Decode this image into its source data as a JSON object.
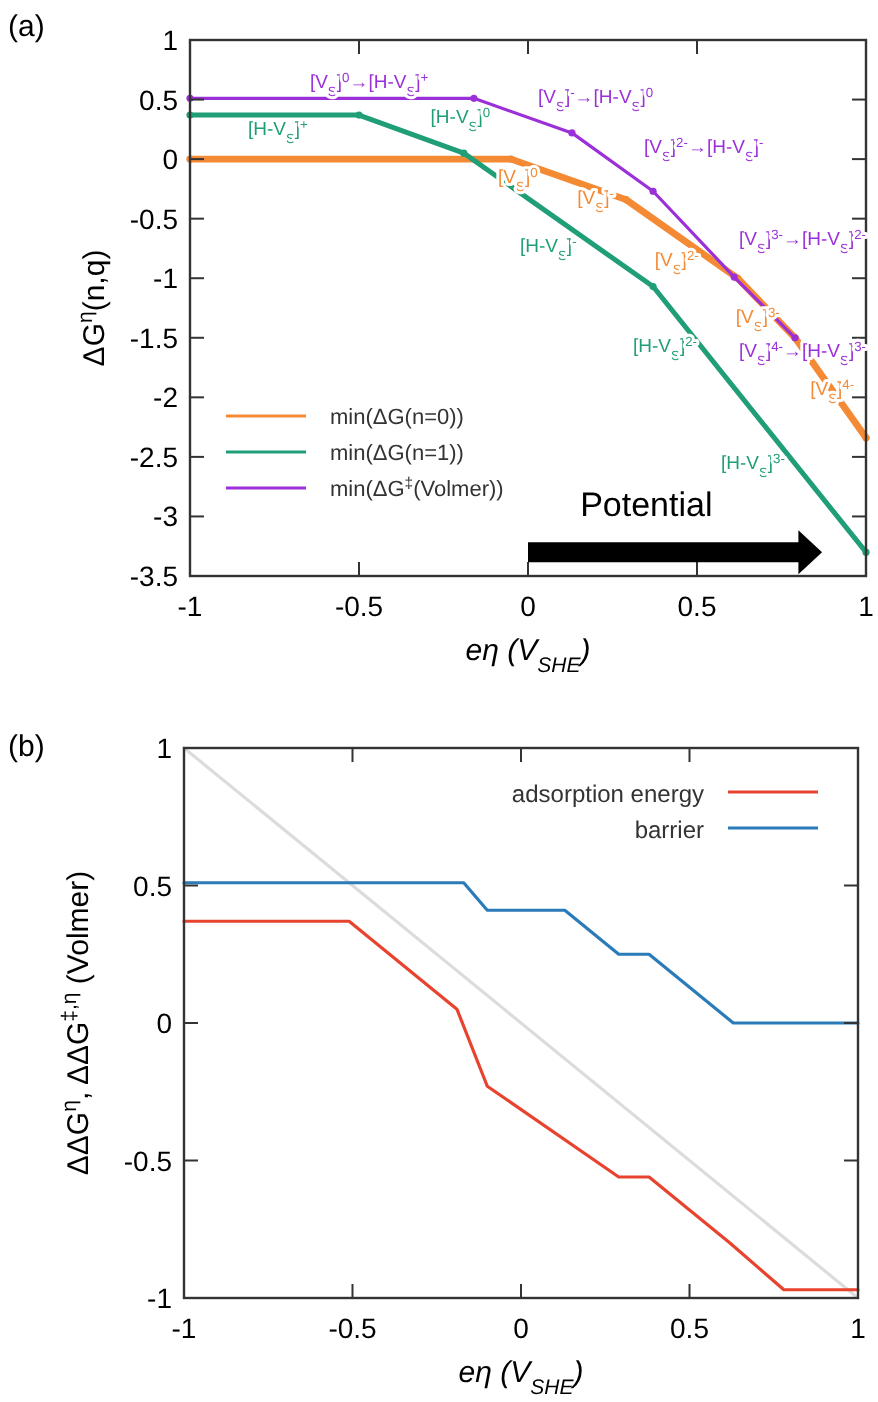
{
  "chart_data": [
    {
      "type": "line",
      "ylabel": "ΔG$^{η}$(n,q)",
      "xlabel": "eη (V$_{SHE}$)",
      "xlim": [
        -1,
        1
      ],
      "ylim": [
        -3.5,
        1
      ],
      "xticks": [
        -1,
        -0.5,
        0,
        0.5,
        1
      ],
      "yticks": [
        1,
        0.5,
        0,
        -0.5,
        -1,
        -1.5,
        -2,
        -2.5,
        -3,
        -3.5
      ],
      "legend": "bottom left",
      "marker": "circle",
      "series": [
        {
          "name": "min(ΔG(n=0))",
          "color": "#f58a35",
          "x": [
            -1,
            -0.05,
            0.29,
            0.62,
            0.79,
            1
          ],
          "values": [
            0,
            0,
            -0.34,
            -1,
            -1.5,
            -2.34
          ]
        },
        {
          "name": "min(ΔG(n=1))",
          "color": "#1f9e77",
          "x": [
            -1,
            -0.5,
            -0.19,
            0.37,
            1
          ],
          "values": [
            0.37,
            0.37,
            0.05,
            -1.07,
            -3.3
          ]
        },
        {
          "name": "min(ΔG$^{‡}$(Volmer))",
          "color": "#9b30d9",
          "x": [
            -1,
            -0.16,
            0.13,
            0.37,
            0.61,
            0.79
          ],
          "values": [
            0.51,
            0.51,
            0.22,
            -0.27,
            -0.99,
            -1.5
          ]
        }
      ],
      "annotations": [
        "(a)",
        "Potential",
        "[V$_{S}$]$^{0}$→[H-V$_{S}$]$^{+}$",
        "[V$_{S}$]$^{-}$→[H-V$_{S}$]$^{0}$",
        "[V$_{S}$]$^{2-}$→[H-V$_{S}$]$^{-}$",
        "[V$_{S}$]$^{3-}$→[H-V$_{S}$]$^{2-}$",
        "[V$_{S}$]$^{4-}$→[H-V$_{S}$]$^{3-}$",
        "[V$_{S}$]$^{0}$",
        "[V$_{S}$]$^{-}$",
        "[V$_{S}$]$^{2-}$",
        "[V$_{S}$]$^{3-}$",
        "[V$_{S}$]$^{4-}$",
        "[H-V$_{S}$]$^{+}$",
        "[H-V$_{S}$]$^{0}$",
        "[H-V$_{S}$]$^{-}$",
        "[H-V$_{S}$]$^{2-}$",
        "[H-V$_{S}$]$^{3-}$"
      ]
    },
    {
      "type": "line",
      "ylabel": "ΔΔG$^{η}$, ΔΔG$^{‡,η}$ (Volmer)",
      "xlabel": "eη (V$_{SHE}$)",
      "xlim": [
        -1,
        1
      ],
      "ylim": [
        -1,
        1
      ],
      "xticks": [
        -1,
        -0.5,
        0,
        0.5,
        1
      ],
      "yticks": [
        -1,
        -0.5,
        0,
        0.5,
        1
      ],
      "legend": "top right",
      "series": [
        {
          "color": "#dcdcdc",
          "x": [
            -1,
            1
          ],
          "values": [
            1,
            -1
          ]
        },
        {
          "name": "adsorption energy",
          "color": "#e8432e",
          "x": [
            -1,
            -0.51,
            -0.19,
            -0.1,
            0.29,
            0.38,
            0.62,
            0.78,
            1
          ],
          "values": [
            0.37,
            0.37,
            0.05,
            -0.23,
            -0.56,
            -0.56,
            -0.8,
            -0.97,
            -0.97
          ]
        },
        {
          "name": "barrier",
          "color": "#2b7bb9",
          "x": [
            -1,
            -0.17,
            -0.1,
            0.13,
            0.29,
            0.38,
            0.63,
            1
          ],
          "values": [
            0.51,
            0.51,
            0.41,
            0.41,
            0.25,
            0.25,
            0,
            0
          ]
        }
      ],
      "annotations": [
        "(b)"
      ]
    }
  ]
}
